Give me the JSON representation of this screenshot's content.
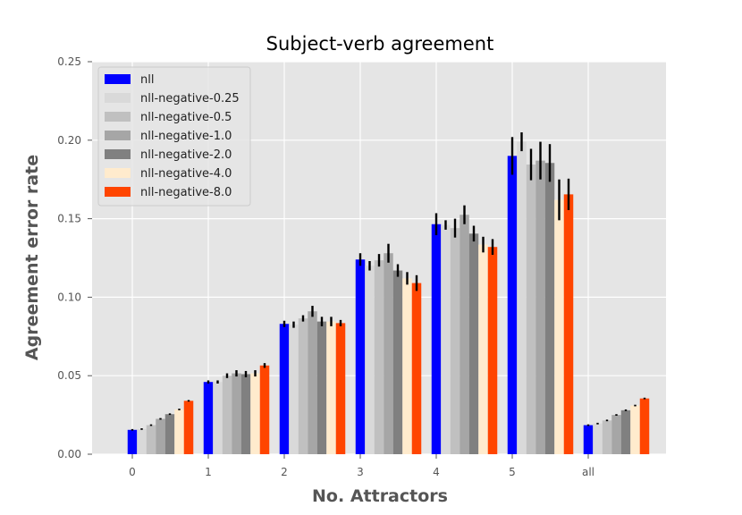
{
  "chart_data": {
    "type": "bar",
    "title": "Subject-verb agreement",
    "xlabel": "No. Attractors",
    "ylabel": "Agreement error rate",
    "categories": [
      "0",
      "1",
      "2",
      "3",
      "4",
      "5",
      "all"
    ],
    "ylim": [
      0,
      0.25
    ],
    "yticks": [
      "0.00",
      "0.05",
      "0.10",
      "0.15",
      "0.20",
      "0.25"
    ],
    "grid": true,
    "legend_position": "top-left",
    "series": [
      {
        "name": "nll",
        "color": "#0000ff",
        "values": [
          0.0155,
          0.046,
          0.083,
          0.124,
          0.1465,
          0.19,
          0.0185
        ],
        "errors": [
          0.0005,
          0.001,
          0.002,
          0.004,
          0.007,
          0.012,
          0.0005
        ]
      },
      {
        "name": "nll-negative-0.25",
        "color": "#d9d9d9",
        "values": [
          0.016,
          0.046,
          0.0825,
          0.12,
          0.146,
          0.199,
          0.0195
        ],
        "errors": [
          0.0005,
          0.001,
          0.002,
          0.003,
          0.003,
          0.006,
          0.0005
        ]
      },
      {
        "name": "nll-negative-0.5",
        "color": "#c0c0c0",
        "values": [
          0.0185,
          0.05,
          0.0865,
          0.1235,
          0.144,
          0.1845,
          0.0215
        ],
        "errors": [
          0.0005,
          0.0015,
          0.002,
          0.004,
          0.006,
          0.01,
          0.0005
        ]
      },
      {
        "name": "nll-negative-1.0",
        "color": "#a6a6a6",
        "values": [
          0.0225,
          0.0515,
          0.091,
          0.128,
          0.1525,
          0.187,
          0.025
        ],
        "errors": [
          0.0005,
          0.002,
          0.0035,
          0.006,
          0.006,
          0.012,
          0.0005
        ]
      },
      {
        "name": "nll-negative-2.0",
        "color": "#808080",
        "values": [
          0.0255,
          0.051,
          0.0845,
          0.117,
          0.1405,
          0.1855,
          0.028
        ],
        "errors": [
          0.0005,
          0.002,
          0.003,
          0.004,
          0.005,
          0.012,
          0.0005
        ]
      },
      {
        "name": "nll-negative-4.0",
        "color": "#ffebcd",
        "values": [
          0.0285,
          0.0515,
          0.0845,
          0.112,
          0.1335,
          0.162,
          0.031
        ],
        "errors": [
          0.0005,
          0.002,
          0.003,
          0.004,
          0.005,
          0.013,
          0.0005
        ]
      },
      {
        "name": "nll-negative-8.0",
        "color": "#ff4500",
        "values": [
          0.034,
          0.0565,
          0.0835,
          0.109,
          0.132,
          0.1655,
          0.0355
        ],
        "errors": [
          0.0005,
          0.0015,
          0.002,
          0.005,
          0.005,
          0.01,
          0.0005
        ]
      }
    ]
  }
}
